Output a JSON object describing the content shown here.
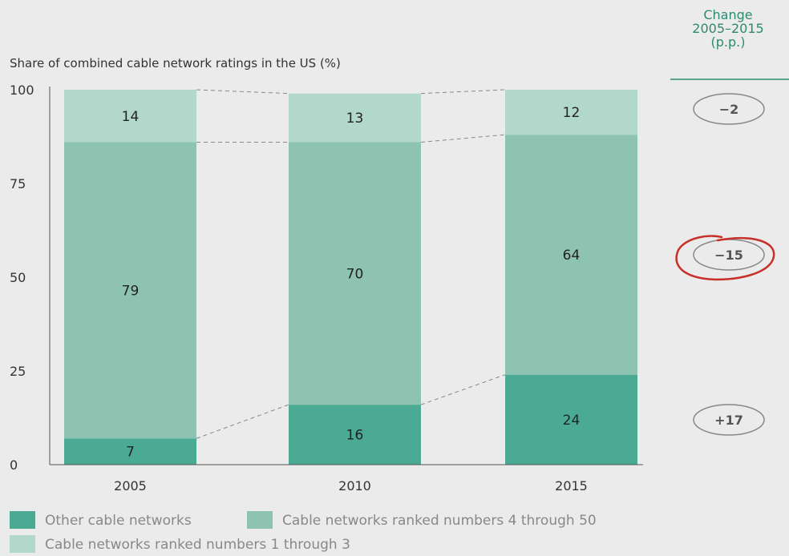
{
  "chart_data": {
    "type": "bar",
    "stacked": true,
    "title": "",
    "ylabel": "Share of combined cable network ratings in the US (%)",
    "xlabel": "",
    "ylim": [
      0,
      100
    ],
    "yticks": [
      0,
      25,
      50,
      75,
      100
    ],
    "categories": [
      "2005",
      "2010",
      "2015"
    ],
    "series": [
      {
        "name": "Other cable networks",
        "values": [
          7,
          16,
          24
        ],
        "color": "#4aaa94"
      },
      {
        "name": "Cable networks ranked numbers 4 through 50",
        "values": [
          79,
          70,
          64
        ],
        "color": "#8ec3b2"
      },
      {
        "name": "Cable networks ranked numbers 1 through 3",
        "values": [
          14,
          13,
          12
        ],
        "color": "#b1d8ca"
      }
    ],
    "change": {
      "header": [
        "Change",
        "2005–2015",
        "(p.p.)"
      ],
      "values": [
        "−2",
        "−15",
        "+17"
      ]
    },
    "grid": false,
    "legend_position": "bottom-left"
  }
}
